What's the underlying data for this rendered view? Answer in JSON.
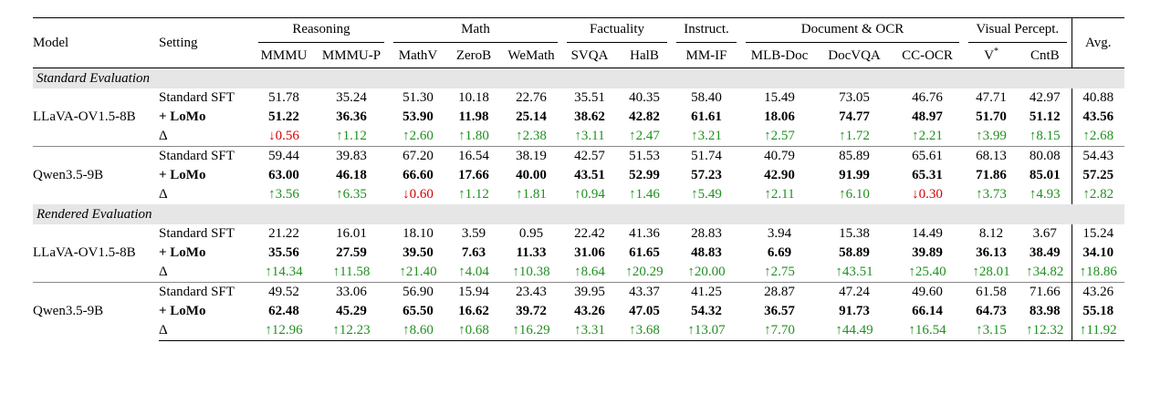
{
  "header": {
    "model": "Model",
    "setting": "Setting",
    "avg": "Avg.",
    "groups": [
      {
        "label": "Reasoning",
        "span": 2
      },
      {
        "label": "Math",
        "span": 3
      },
      {
        "label": "Factuality",
        "span": 2
      },
      {
        "label": "Instruct.",
        "span": 1
      },
      {
        "label": "Document & OCR",
        "span": 3
      },
      {
        "label": "Visual Percept.",
        "span": 2
      }
    ],
    "columns": [
      "MMMU",
      "MMMU-P",
      "MathV",
      "ZeroB",
      "WeMath",
      "SVQA",
      "HalB",
      "MM-IF",
      "MLB-Doc",
      "DocVQA",
      "CC-OCR",
      "V",
      "CntB"
    ],
    "v_sup": "*"
  },
  "sections": [
    {
      "title": "Standard Evaluation",
      "models": [
        {
          "name": "LLaVA-OV1.5-8B",
          "rows": [
            {
              "setting": "Standard SFT",
              "bold": false,
              "values": [
                "51.78",
                "35.24",
                "51.30",
                "10.18",
                "22.76",
                "35.51",
                "40.35",
                "58.40",
                "15.49",
                "73.05",
                "46.76",
                "47.71",
                "42.97",
                "40.88"
              ]
            },
            {
              "setting": "+ LoMo",
              "bold": true,
              "values": [
                "51.22",
                "36.36",
                "53.90",
                "11.98",
                "25.14",
                "38.62",
                "42.82",
                "61.61",
                "18.06",
                "74.77",
                "48.97",
                "51.70",
                "51.12",
                "43.56"
              ]
            },
            {
              "setting": "Δ",
              "delta": true,
              "values": [
                "↓0.56",
                "↑1.12",
                "↑2.60",
                "↑1.80",
                "↑2.38",
                "↑3.11",
                "↑2.47",
                "↑3.21",
                "↑2.57",
                "↑1.72",
                "↑2.21",
                "↑3.99",
                "↑8.15",
                "↑2.68"
              ]
            }
          ]
        },
        {
          "name": "Qwen3.5-9B",
          "rows": [
            {
              "setting": "Standard SFT",
              "bold": false,
              "values": [
                "59.44",
                "39.83",
                "67.20",
                "16.54",
                "38.19",
                "42.57",
                "51.53",
                "51.74",
                "40.79",
                "85.89",
                "65.61",
                "68.13",
                "80.08",
                "54.43"
              ]
            },
            {
              "setting": "+ LoMo",
              "bold": true,
              "values": [
                "63.00",
                "46.18",
                "66.60",
                "17.66",
                "40.00",
                "43.51",
                "52.99",
                "57.23",
                "42.90",
                "91.99",
                "65.31",
                "71.86",
                "85.01",
                "57.25"
              ]
            },
            {
              "setting": "Δ",
              "delta": true,
              "values": [
                "↑3.56",
                "↑6.35",
                "↓0.60",
                "↑1.12",
                "↑1.81",
                "↑0.94",
                "↑1.46",
                "↑5.49",
                "↑2.11",
                "↑6.10",
                "↓0.30",
                "↑3.73",
                "↑4.93",
                "↑2.82"
              ]
            }
          ]
        }
      ]
    },
    {
      "title": "Rendered Evaluation",
      "models": [
        {
          "name": "LLaVA-OV1.5-8B",
          "rows": [
            {
              "setting": "Standard SFT",
              "bold": false,
              "values": [
                "21.22",
                "16.01",
                "18.10",
                "3.59",
                "0.95",
                "22.42",
                "41.36",
                "28.83",
                "3.94",
                "15.38",
                "14.49",
                "8.12",
                "3.67",
                "15.24"
              ]
            },
            {
              "setting": "+ LoMo",
              "bold": true,
              "values": [
                "35.56",
                "27.59",
                "39.50",
                "7.63",
                "11.33",
                "31.06",
                "61.65",
                "48.83",
                "6.69",
                "58.89",
                "39.89",
                "36.13",
                "38.49",
                "34.10"
              ]
            },
            {
              "setting": "Δ",
              "delta": true,
              "values": [
                "↑14.34",
                "↑11.58",
                "↑21.40",
                "↑4.04",
                "↑10.38",
                "↑8.64",
                "↑20.29",
                "↑20.00",
                "↑2.75",
                "↑43.51",
                "↑25.40",
                "↑28.01",
                "↑34.82",
                "↑18.86"
              ]
            }
          ]
        },
        {
          "name": "Qwen3.5-9B",
          "rows": [
            {
              "setting": "Standard SFT",
              "bold": false,
              "values": [
                "49.52",
                "33.06",
                "56.90",
                "15.94",
                "23.43",
                "39.95",
                "43.37",
                "41.25",
                "28.87",
                "47.24",
                "49.60",
                "61.58",
                "71.66",
                "43.26"
              ]
            },
            {
              "setting": "+ LoMo",
              "bold": true,
              "values": [
                "62.48",
                "45.29",
                "65.50",
                "16.62",
                "39.72",
                "43.26",
                "47.05",
                "54.32",
                "36.57",
                "91.73",
                "66.14",
                "64.73",
                "83.98",
                "55.18"
              ]
            },
            {
              "setting": "Δ",
              "delta": true,
              "values": [
                "↑12.96",
                "↑12.23",
                "↑8.60",
                "↑0.68",
                "↑16.29",
                "↑3.31",
                "↑3.68",
                "↑13.07",
                "↑7.70",
                "↑44.49",
                "↑16.54",
                "↑3.15",
                "↑12.32",
                "↑11.92"
              ]
            }
          ]
        }
      ]
    }
  ],
  "colors": {
    "up": "#1f8f1f",
    "down": "#d60000",
    "section_bg": "#e6e6e6"
  }
}
